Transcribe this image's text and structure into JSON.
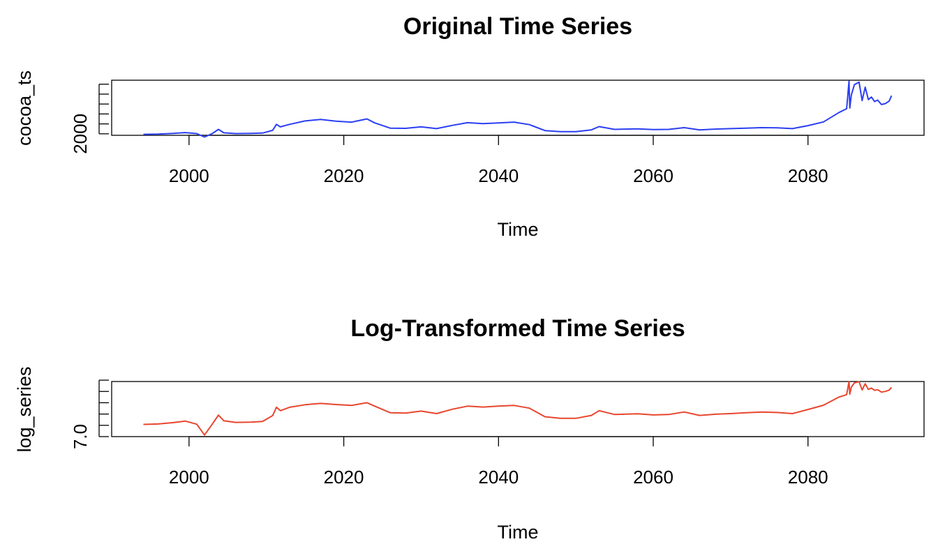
{
  "chart_data": [
    {
      "type": "line",
      "title": "Original Time Series",
      "xlabel": "Time",
      "ylabel": "cocoa_ts",
      "xlim": [
        1990,
        2095
      ],
      "ylim": [
        1700,
        12800
      ],
      "x_ticks": [
        2000,
        2020,
        2040,
        2060,
        2080
      ],
      "y_tick_values": [
        2000,
        4000,
        6000,
        8000,
        10000,
        12000
      ],
      "y_tick_labels": [
        "2000",
        "",
        "",
        "",
        "",
        ""
      ],
      "color": "#2b3ff2",
      "series": [
        {
          "name": "cocoa_ts",
          "x": [
            1994.1,
            1996.0,
            1998.0,
            1999.5,
            2001.0,
            2002.0,
            2003.0,
            2003.8,
            2004.5,
            2006.0,
            2008.0,
            2009.5,
            2010.8,
            2011.3,
            2011.8,
            2013.0,
            2015.0,
            2017.0,
            2019.0,
            2021.0,
            2023.0,
            2024.0,
            2026.0,
            2028.0,
            2030.0,
            2032.0,
            2034.0,
            2036.0,
            2038.0,
            2040.0,
            2042.0,
            2044.0,
            2046.0,
            2048.0,
            2050.0,
            2052.0,
            2053.0,
            2055.0,
            2058.0,
            2060.0,
            2062.0,
            2064.0,
            2066.0,
            2068.0,
            2070.0,
            2072.0,
            2074.0,
            2076.0,
            2078.0,
            2080.0,
            2082.0,
            2084.0,
            2085.0,
            2085.3,
            2085.4,
            2085.6,
            2086.0,
            2086.6,
            2087.0,
            2087.4,
            2087.8,
            2088.2,
            2088.6,
            2089.0,
            2089.5,
            2090.0,
            2090.5,
            2090.8
          ],
          "y": [
            1900,
            1950,
            2100,
            2250,
            2050,
            1350,
            2050,
            2900,
            2200,
            2050,
            2100,
            2150,
            2700,
            3900,
            3400,
            3900,
            4600,
            4900,
            4550,
            4350,
            5000,
            4200,
            3150,
            3100,
            3400,
            3050,
            3700,
            4250,
            4050,
            4200,
            4350,
            3850,
            2650,
            2450,
            2450,
            2800,
            3450,
            2900,
            3000,
            2850,
            2900,
            3250,
            2800,
            2950,
            3050,
            3150,
            3250,
            3200,
            3050,
            3650,
            4400,
            6300,
            7050,
            12600,
            7200,
            9800,
            11900,
            12400,
            8700,
            11400,
            8900,
            9400,
            8500,
            8800,
            7900,
            8100,
            8600,
            9700
          ]
        }
      ]
    },
    {
      "type": "line",
      "title": "Log-Transformed Time Series",
      "xlabel": "Time",
      "ylabel": "log_series",
      "xlim": [
        1990,
        2095
      ],
      "ylim": [
        7.0,
        9.44
      ],
      "x_ticks": [
        2000,
        2020,
        2040,
        2060,
        2080
      ],
      "y_tick_values": [
        7.0,
        7.5,
        8.0,
        8.5,
        9.0,
        9.5
      ],
      "y_tick_labels": [
        "7.0",
        "",
        "",
        "",
        "",
        ""
      ],
      "color": "#e8462e",
      "series": [
        {
          "name": "log_series",
          "x": [
            1994.1,
            1996.0,
            1998.0,
            1999.5,
            2001.0,
            2002.0,
            2003.0,
            2003.8,
            2004.5,
            2006.0,
            2008.0,
            2009.5,
            2010.8,
            2011.3,
            2011.8,
            2013.0,
            2015.0,
            2017.0,
            2019.0,
            2021.0,
            2023.0,
            2024.0,
            2026.0,
            2028.0,
            2030.0,
            2032.0,
            2034.0,
            2036.0,
            2038.0,
            2040.0,
            2042.0,
            2044.0,
            2046.0,
            2048.0,
            2050.0,
            2052.0,
            2053.0,
            2055.0,
            2058.0,
            2060.0,
            2062.0,
            2064.0,
            2066.0,
            2068.0,
            2070.0,
            2072.0,
            2074.0,
            2076.0,
            2078.0,
            2080.0,
            2082.0,
            2084.0,
            2085.0,
            2085.3,
            2085.4,
            2085.6,
            2086.0,
            2086.6,
            2087.0,
            2087.4,
            2087.8,
            2088.2,
            2088.6,
            2089.0,
            2089.5,
            2090.0,
            2090.5,
            2090.8
          ],
          "y": [
            7.54,
            7.56,
            7.62,
            7.69,
            7.55,
            7.07,
            7.55,
            7.95,
            7.7,
            7.63,
            7.64,
            7.67,
            7.93,
            8.3,
            8.15,
            8.3,
            8.41,
            8.47,
            8.42,
            8.38,
            8.5,
            8.35,
            8.06,
            8.04,
            8.13,
            8.02,
            8.21,
            8.35,
            8.31,
            8.35,
            8.38,
            8.26,
            7.88,
            7.81,
            7.81,
            7.94,
            8.15,
            7.98,
            8.01,
            7.96,
            7.98,
            8.09,
            7.94,
            7.99,
            8.02,
            8.06,
            8.09,
            8.07,
            8.02,
            8.2,
            8.39,
            8.75,
            8.86,
            9.44,
            8.88,
            9.19,
            9.38,
            9.43,
            9.07,
            9.34,
            9.09,
            9.15,
            9.05,
            9.08,
            8.97,
            9.0,
            9.06,
            9.18
          ]
        }
      ]
    }
  ]
}
